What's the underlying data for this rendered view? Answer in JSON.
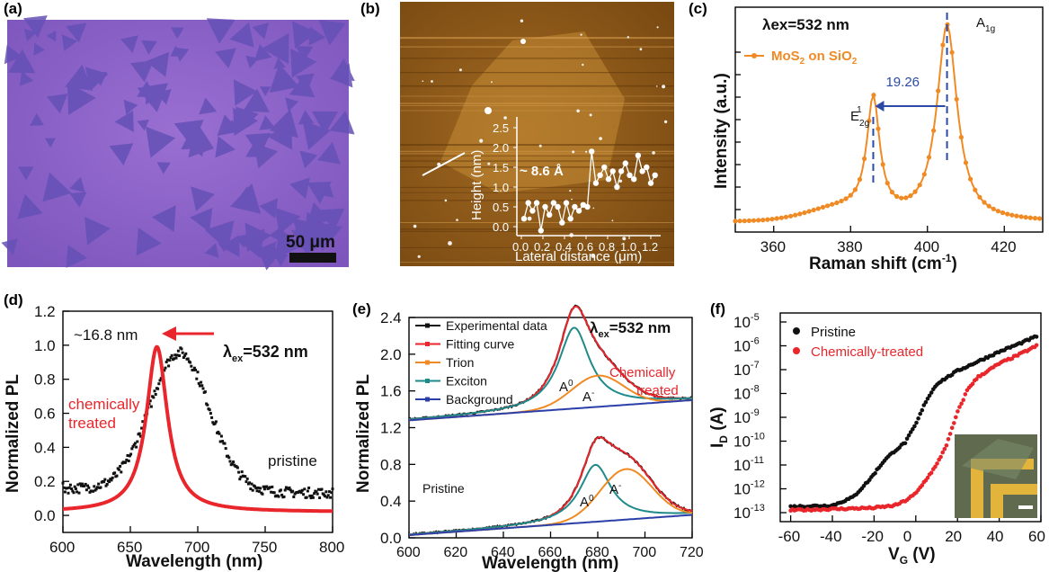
{
  "panels": {
    "a": {
      "label": "(a)",
      "scalebar": "50 μm",
      "colors": {
        "substrate": "#8a5fc4",
        "flake": "#6a52b8"
      }
    },
    "b": {
      "label": "(b)",
      "inset_step": "~ 8.6 Å",
      "inset_ylabel": "Height (nm)",
      "inset_xlabel": "Lateral distance (μm)",
      "inset_yticks": [
        "0.0",
        "0.5",
        "1.0",
        "1.5",
        "2.0",
        "2.5"
      ],
      "inset_xticks": [
        "0.0",
        "0.2",
        "0.4",
        "0.6",
        "0.8",
        "1.0",
        "1.2"
      ]
    },
    "c": {
      "label": "(c)",
      "excitation": "λex=532 nm",
      "legend": "MoS2 on SiO2",
      "e2g": "E2g1",
      "a1g": "A1g",
      "shift": "19.26"
    },
    "d": {
      "label": "(d)",
      "excitation": "λex=532 nm",
      "shift": "~16.8 nm",
      "label_treated": "chemically treated",
      "label_pristine": "pristine"
    },
    "e": {
      "label": "(e)",
      "excitation": "λex=532 nm",
      "legend": [
        "Experimental data",
        "Fitting curve",
        "Trion",
        "Exciton",
        "Background"
      ],
      "label_treated": "Chemically treated",
      "label_pristine": "Pristine",
      "label_A0": "A0",
      "label_Aminus": "A-"
    },
    "f": {
      "label": "(f)",
      "legend": [
        "Pristine",
        "Chemically-treated"
      ]
    }
  },
  "chart_data": [
    {
      "panel": "c",
      "type": "line",
      "xlabel": "Raman shift (cm-1)",
      "ylabel": "Intensity (a.u.)",
      "xlim": [
        350,
        430
      ],
      "xticks": [
        360,
        380,
        400,
        420
      ],
      "series": [
        {
          "name": "MoS2 on SiO2",
          "color": "#f08a24",
          "peaks": [
            {
              "x": 385.9,
              "amp": 0.55,
              "width": 2.0
            },
            {
              "x": 405.1,
              "amp": 0.95,
              "width": 3.2
            }
          ]
        }
      ]
    },
    {
      "panel": "d",
      "type": "line",
      "xlabel": "Wavelength (nm)",
      "ylabel": "Normalized PL",
      "xlim": [
        600,
        800
      ],
      "ylim": [
        -0.1,
        1.2
      ],
      "xticks": [
        600,
        650,
        700,
        750,
        800
      ],
      "yticks": [
        0.0,
        0.2,
        0.4,
        0.6,
        0.8,
        1.0,
        1.2
      ],
      "series": [
        {
          "name": "pristine",
          "color": "#111111",
          "peak_nm": 686.5,
          "height": 0.95
        },
        {
          "name": "chemically treated",
          "color": "#e8262b",
          "peak_nm": 669.7,
          "height": 1.0
        }
      ]
    },
    {
      "panel": "e",
      "type": "line",
      "xlabel": "Wavelength (nm)",
      "ylabel": "Normalized PL",
      "xlim": [
        600,
        720
      ],
      "ylim": [
        0.0,
        2.4
      ],
      "xticks": [
        600,
        620,
        640,
        660,
        680,
        700,
        720
      ],
      "yticks": [
        0.0,
        0.4,
        0.8,
        1.2,
        1.6,
        2.0,
        2.4
      ],
      "series": [
        {
          "name": "Experimental data",
          "color": "#111111"
        },
        {
          "name": "Fitting curve",
          "color": "#e8262b"
        },
        {
          "name": "Trion",
          "color": "#f08a24"
        },
        {
          "name": "Exciton",
          "color": "#1f8a8a"
        },
        {
          "name": "Background",
          "color": "#2b3fa8"
        }
      ],
      "treated": {
        "offset": 1.25,
        "exciton": {
          "center": 670,
          "height": 0.88
        },
        "trion": {
          "center": 680,
          "height": 0.34
        }
      },
      "pristine": {
        "offset": 0.0,
        "exciton": {
          "center": 679,
          "height": 0.62
        },
        "trion": {
          "center": 692,
          "height": 0.55
        }
      }
    },
    {
      "panel": "f",
      "type": "scatter",
      "xlabel": "VG (V)",
      "ylabel": "ID (A)",
      "xlim": [
        -65,
        60
      ],
      "xticks": [
        -60,
        -40,
        -20,
        0,
        20,
        40,
        60
      ],
      "ylim_log10": [
        -13,
        -5
      ],
      "yticks_log10": [
        -13,
        -12,
        -11,
        -10,
        -9,
        -8,
        -7,
        -6,
        -5
      ],
      "series": [
        {
          "name": "Pristine",
          "color": "#111111",
          "points": [
            [
              -60,
              -12.75
            ],
            [
              -40,
              -12.7
            ],
            [
              -30,
              -12.35
            ],
            [
              -22,
              -11.6
            ],
            [
              -15,
              -10.8
            ],
            [
              -10,
              -10.4
            ],
            [
              -5,
              -10.05
            ],
            [
              0,
              -9.3
            ],
            [
              5,
              -8.3
            ],
            [
              10,
              -7.6
            ],
            [
              20,
              -7.05
            ],
            [
              30,
              -6.65
            ],
            [
              40,
              -6.25
            ],
            [
              50,
              -5.9
            ],
            [
              58,
              -5.6
            ]
          ]
        },
        {
          "name": "Chemically-treated",
          "color": "#e8262b",
          "points": [
            [
              -60,
              -12.9
            ],
            [
              -40,
              -12.85
            ],
            [
              -20,
              -12.8
            ],
            [
              -10,
              -12.7
            ],
            [
              -5,
              -12.5
            ],
            [
              0,
              -12.2
            ],
            [
              5,
              -11.6
            ],
            [
              10,
              -11.0
            ],
            [
              15,
              -10.1
            ],
            [
              20,
              -8.8
            ],
            [
              25,
              -7.8
            ],
            [
              30,
              -7.3
            ],
            [
              40,
              -6.75
            ],
            [
              50,
              -6.35
            ],
            [
              58,
              -6.0
            ]
          ]
        }
      ]
    }
  ]
}
